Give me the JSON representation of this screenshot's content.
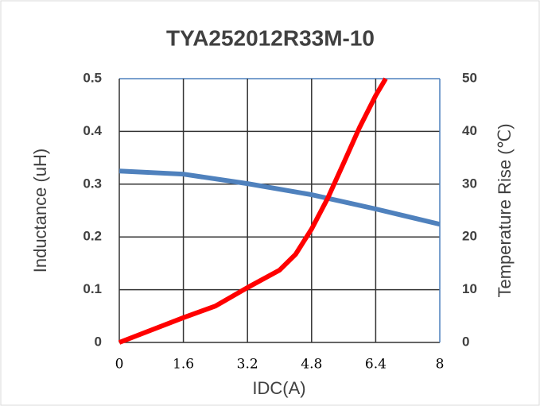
{
  "chart_data": {
    "type": "line",
    "title": "TYA252012R33M-10",
    "xlabel": "IDC(A)",
    "ylabel": "Inductance (uH)",
    "y2label": "Temperature Rise (℃)",
    "xlim": [
      0,
      8
    ],
    "xticks": [
      0,
      1.6,
      3.2,
      4.8,
      6.4,
      8
    ],
    "ylim": [
      0,
      0.5
    ],
    "yticks": [
      0,
      0.1,
      0.2,
      0.3,
      0.4,
      0.5
    ],
    "y2lim": [
      0,
      50
    ],
    "y2ticks": [
      0,
      10,
      20,
      30,
      40,
      50
    ],
    "grid": true,
    "series": [
      {
        "color": "#4f81bd",
        "x": [
          0,
          1.6,
          3.2,
          4.8,
          6.4,
          8
        ],
        "values": [
          0.325,
          0.319,
          0.301,
          0.28,
          0.253,
          0.224
        ]
      },
      {
        "color": "#ff0000",
        "axis": "y2",
        "x": [
          0,
          1.6,
          2.4,
          3.2,
          4.0,
          4.4,
          4.8,
          5.2,
          5.6,
          6.0,
          6.4,
          6.65
        ],
        "values": [
          0,
          4.7,
          6.9,
          10.4,
          13.7,
          16.7,
          21.5,
          27.3,
          34,
          40.8,
          46.8,
          50
        ]
      }
    ]
  }
}
